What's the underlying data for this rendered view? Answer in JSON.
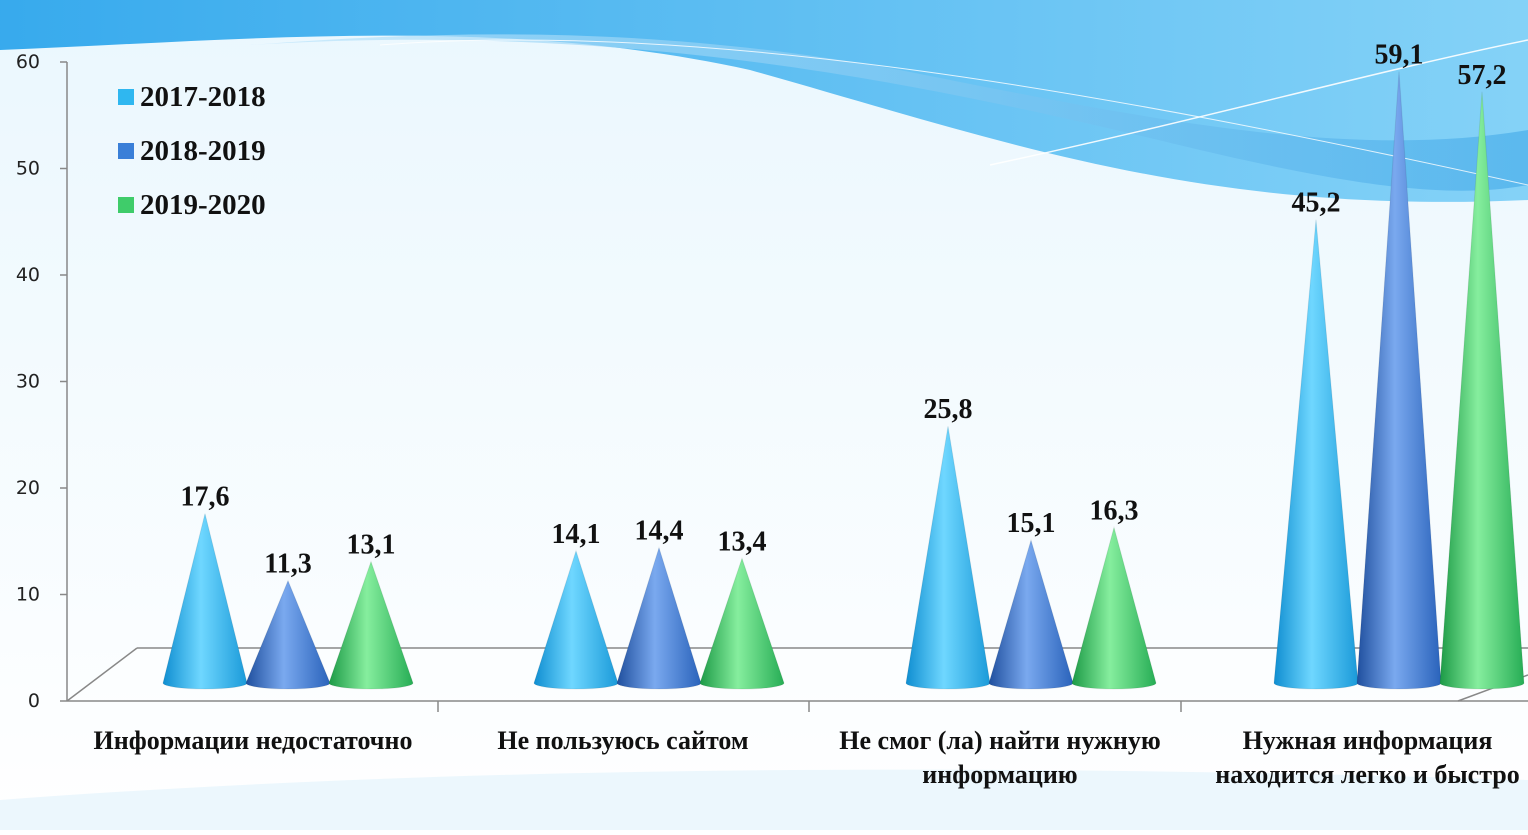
{
  "chart_data": {
    "type": "bar",
    "categories": [
      "Информации недостаточно",
      "Не пользуюсь сайтом",
      "Не смог (ла) найти нужную информацию",
      "Нужная информация находится легко и быстро"
    ],
    "series": [
      {
        "name": "2017-2018",
        "values": [
          17.6,
          14.1,
          25.8,
          45.2
        ],
        "labels": [
          "17,6",
          "14,1",
          "25,8",
          "45,2"
        ],
        "color": "#2fb7f0"
      },
      {
        "name": "2018-2019",
        "values": [
          11.3,
          14.4,
          15.1,
          59.1
        ],
        "labels": [
          "11,3",
          "14,4",
          "15,1",
          "59,1"
        ],
        "color": "#3a7fd8"
      },
      {
        "name": "2019-2020",
        "values": [
          13.1,
          13.4,
          16.3,
          57.2
        ],
        "labels": [
          "13,1",
          "13,4",
          "16,3",
          "57,2"
        ],
        "color": "#3fcc6a"
      }
    ],
    "ylim": [
      0,
      60
    ],
    "yticks": [
      "0",
      "10",
      "20",
      "30",
      "40",
      "50",
      "60"
    ],
    "legend_position": "top-left",
    "grid": false,
    "shape": "cone",
    "colors": {
      "background_wave": "#4bb6ef",
      "axis": "#888888"
    }
  }
}
